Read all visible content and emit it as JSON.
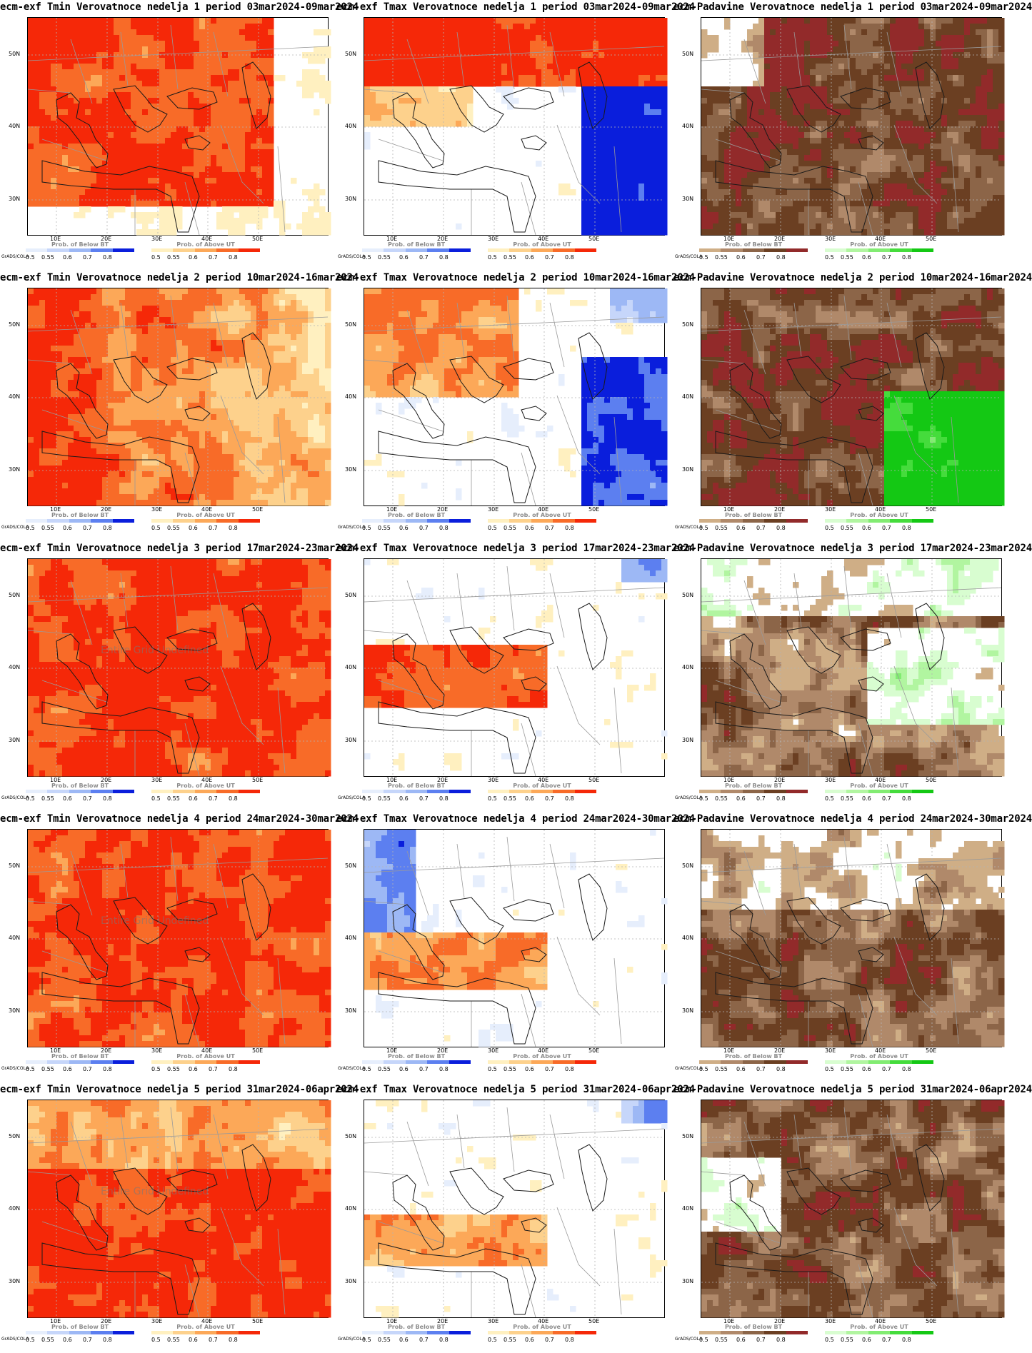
{
  "lat_labels": [
    "50N",
    "40N",
    "30N"
  ],
  "lon_labels": [
    "10E",
    "20E",
    "30E",
    "40E",
    "50E"
  ],
  "grads_credit": "GrADS/COLA",
  "legend_ticks": [
    "0.5",
    "0.55",
    "0.6",
    "0.7",
    "0.8"
  ],
  "legend_titles": {
    "below": "Prob. of Below BT",
    "above": "Prob. of Above UT"
  },
  "legend_colors": {
    "temp_below": [
      "#e6eefc",
      "#c6d6fa",
      "#9db8f5",
      "#5c7ff0",
      "#0a1edc"
    ],
    "temp_above": [
      "#fff0c0",
      "#fdd18c",
      "#fca858",
      "#f86b28",
      "#f52808"
    ],
    "precip_below": [
      "#cfae86",
      "#b0896a",
      "#8c6548",
      "#6b3f22",
      "#922a2a"
    ],
    "precip_above": [
      "#d8fdd0",
      "#b1f5a0",
      "#82ec72",
      "#45dc3c",
      "#14c814"
    ]
  },
  "missing_text": "Entire Grid Undefined",
  "panels": [
    {
      "title": "ecm-exf Tmin Verovatnoce nedelja 1 period 03mar2024-09mar2024",
      "var": "tmin",
      "week": 1
    },
    {
      "title": "ecm-exf Tmax Verovatnoce nedelja 1 period 03mar2024-09mar2024",
      "var": "tmax",
      "week": 1
    },
    {
      "title": "ecm-Padavine Verovatnoce nedelja 1 period 03mar2024-09mar2024",
      "var": "precip",
      "week": 1
    },
    {
      "title": "ecm-exf Tmin Verovatnoce nedelja 2 period 10mar2024-16mar2024",
      "var": "tmin",
      "week": 2
    },
    {
      "title": "ecm-exf Tmax Verovatnoce nedelja 2 period 10mar2024-16mar2024",
      "var": "tmax",
      "week": 2
    },
    {
      "title": "ecm-Padavine Verovatnoce nedelja 2 period 10mar2024-16mar2024",
      "var": "precip",
      "week": 2
    },
    {
      "title": "ecm-exf Tmin Verovatnoce nedelja 3 period 17mar2024-23mar2024",
      "var": "tmin",
      "week": 3,
      "undefined": true
    },
    {
      "title": "ecm-exf Tmax Verovatnoce nedelja 3 period 17mar2024-23mar2024",
      "var": "tmax",
      "week": 3
    },
    {
      "title": "ecm-Padavine Verovatnoce nedelja 3 period 17mar2024-23mar2024",
      "var": "precip",
      "week": 3
    },
    {
      "title": "ecm-exf Tmin Verovatnoce nedelja 4 period 24mar2024-30mar2024",
      "var": "tmin",
      "week": 4,
      "undefined": true
    },
    {
      "title": "ecm-exf Tmax Verovatnoce nedelja 4 period 24mar2024-30mar2024",
      "var": "tmax",
      "week": 4
    },
    {
      "title": "ecm-Padavine Verovatnoce nedelja 4 period 24mar2024-30mar2024",
      "var": "precip",
      "week": 4
    },
    {
      "title": "ecm-exf Tmin Verovatnoce nedelja 5 period 31mar2024-06apr2024",
      "var": "tmin",
      "week": 5,
      "undefined": true
    },
    {
      "title": "ecm-exf Tmax Verovatnoce nedelja 5 period 31mar2024-06apr2024",
      "var": "tmax",
      "week": 5
    },
    {
      "title": "ecm-Padavine Verovatnoce nedelja 5 period 31mar2024-06apr2024",
      "var": "precip",
      "week": 5
    }
  ]
}
